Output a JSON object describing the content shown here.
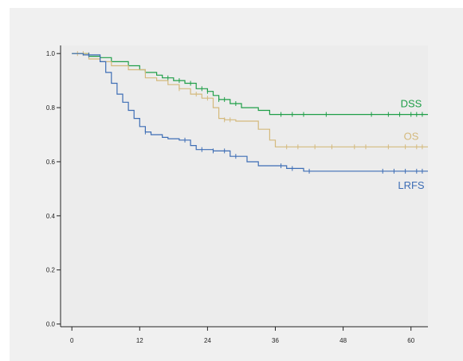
{
  "colors": {
    "page_background": "#ffffff",
    "panel_background": "#f0f0f0",
    "plot_background": "#ececec",
    "axis": "#222222"
  },
  "chart_data": {
    "type": "line",
    "subtype": "kaplan-meier-step",
    "title": "",
    "xlabel": "",
    "ylabel": "",
    "xlim": [
      -2,
      63
    ],
    "ylim": [
      -0.01,
      1.03
    ],
    "x_ticks": [
      0,
      12,
      24,
      36,
      48,
      60
    ],
    "x_tick_labels": [
      "0",
      "12",
      "24",
      "36",
      "48",
      "60"
    ],
    "y_ticks": [
      0.0,
      0.2,
      0.4,
      0.6,
      0.8,
      1.0
    ],
    "y_tick_labels": [
      "0.0",
      "0.2",
      "0.4",
      "0.6",
      "0.8",
      "1.0"
    ],
    "grid": false,
    "legend": "inline labels at right",
    "series": [
      {
        "name": "DSS",
        "color": "#1e9e47",
        "steps": [
          [
            0,
            1.0
          ],
          [
            3,
            0.99
          ],
          [
            5,
            0.985
          ],
          [
            7,
            0.97
          ],
          [
            10,
            0.955
          ],
          [
            12,
            0.94
          ],
          [
            13,
            0.93
          ],
          [
            15,
            0.92
          ],
          [
            16,
            0.91
          ],
          [
            18,
            0.9
          ],
          [
            20,
            0.89
          ],
          [
            22,
            0.87
          ],
          [
            24,
            0.86
          ],
          [
            25,
            0.845
          ],
          [
            26,
            0.83
          ],
          [
            28,
            0.815
          ],
          [
            30,
            0.8
          ],
          [
            33,
            0.79
          ],
          [
            35,
            0.775
          ],
          [
            63,
            0.775
          ]
        ],
        "censors": [
          17,
          19,
          21,
          23,
          24,
          26,
          27,
          29,
          37,
          39,
          41,
          45,
          53,
          56,
          58,
          60,
          61,
          62
        ]
      },
      {
        "name": "OS",
        "color": "#d4b97c",
        "steps": [
          [
            0,
            1.0
          ],
          [
            3,
            0.98
          ],
          [
            5,
            0.97
          ],
          [
            7,
            0.955
          ],
          [
            10,
            0.94
          ],
          [
            13,
            0.91
          ],
          [
            15,
            0.9
          ],
          [
            17,
            0.885
          ],
          [
            19,
            0.87
          ],
          [
            21,
            0.85
          ],
          [
            23,
            0.835
          ],
          [
            25,
            0.8
          ],
          [
            26,
            0.76
          ],
          [
            27,
            0.755
          ],
          [
            29,
            0.75
          ],
          [
            33,
            0.72
          ],
          [
            35,
            0.68
          ],
          [
            36,
            0.655
          ],
          [
            63,
            0.655
          ]
        ],
        "censors": [
          1,
          2,
          19,
          22,
          24,
          27,
          28,
          38,
          40,
          43,
          46,
          50,
          52,
          56,
          59,
          61,
          62
        ]
      },
      {
        "name": "LRFS",
        "color": "#3d6db5",
        "steps": [
          [
            0,
            1.0
          ],
          [
            2,
            0.995
          ],
          [
            5,
            0.97
          ],
          [
            6,
            0.93
          ],
          [
            7,
            0.89
          ],
          [
            8,
            0.85
          ],
          [
            9,
            0.82
          ],
          [
            10,
            0.79
          ],
          [
            11,
            0.76
          ],
          [
            12,
            0.73
          ],
          [
            13,
            0.71
          ],
          [
            14,
            0.7
          ],
          [
            16,
            0.69
          ],
          [
            17,
            0.685
          ],
          [
            19,
            0.68
          ],
          [
            21,
            0.66
          ],
          [
            22,
            0.645
          ],
          [
            25,
            0.64
          ],
          [
            28,
            0.62
          ],
          [
            31,
            0.6
          ],
          [
            33,
            0.585
          ],
          [
            38,
            0.575
          ],
          [
            41,
            0.565
          ],
          [
            63,
            0.565
          ]
        ],
        "censors": [
          3,
          13,
          20,
          23,
          25,
          27,
          29,
          37,
          39,
          42,
          55,
          57,
          59,
          61,
          62
        ]
      }
    ]
  }
}
